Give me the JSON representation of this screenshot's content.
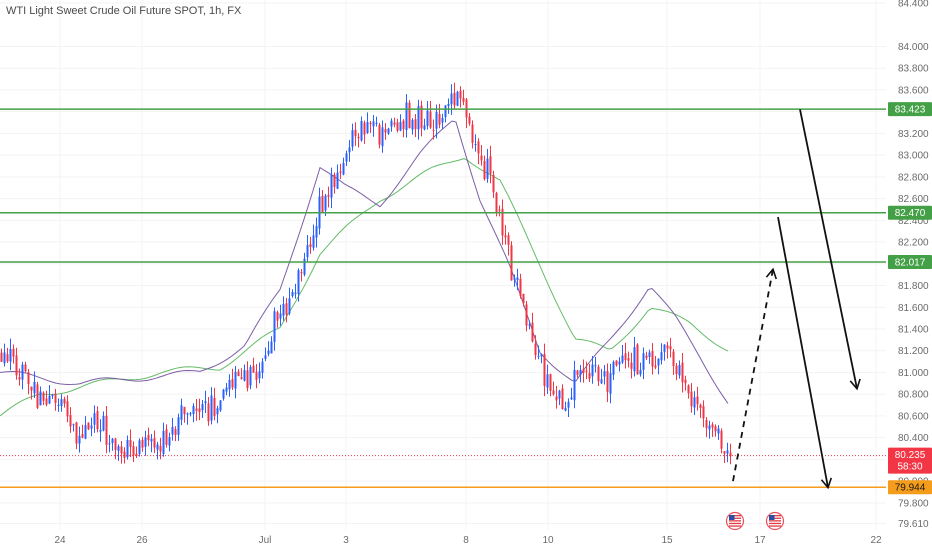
{
  "chart_data": {
    "type": "candlestick",
    "title": "WTI Light Sweet Crude Oil Future SPOT, 1h, FX",
    "y_ticks": [
      "84.400",
      "84.000",
      "83.800",
      "83.600",
      "83.400",
      "83.200",
      "83.000",
      "82.800",
      "82.600",
      "82.400",
      "82.200",
      "82.000",
      "81.800",
      "81.600",
      "81.400",
      "81.200",
      "81.000",
      "80.800",
      "80.600",
      "80.400",
      "80.200",
      "80.000",
      "79.800",
      "79.610"
    ],
    "x_ticks": [
      "24",
      "26",
      "Jul",
      "3",
      "8",
      "10",
      "15",
      "17",
      "22"
    ],
    "ylim": [
      79.61,
      84.4
    ],
    "horizontal_levels": [
      {
        "value": 83.423,
        "label": "83.423",
        "color": "#43a047"
      },
      {
        "value": 82.47,
        "label": "82.470",
        "color": "#43a047"
      },
      {
        "value": 82.017,
        "label": "82.017",
        "color": "#43a047"
      },
      {
        "value": 79.944,
        "label": "79.944",
        "color": "#f59c1a"
      }
    ],
    "last_price": {
      "value": 80.235,
      "label": "80.235",
      "countdown": "58:30",
      "color": "#f23645"
    },
    "up_color": "#2962ff",
    "down_color": "#f23645",
    "ma_fast_color": "#7b5ea7",
    "ma_slow_color": "#66bb6a",
    "event_icons": [
      "us-flag-icon",
      "us-flag-icon"
    ],
    "anchors_x": [
      0,
      60,
      142,
      265,
      346,
      466,
      548,
      667,
      730
    ],
    "anchors_close": [
      81.2,
      80.6,
      80.25,
      81.15,
      83.1,
      83.5,
      80.8,
      81.2,
      80.2
    ],
    "ma_fast_anchors_x": [
      0,
      40,
      80,
      140,
      200,
      245,
      280,
      320,
      345,
      380,
      420,
      455,
      480,
      510,
      540,
      575,
      610,
      650,
      675,
      700,
      730
    ],
    "ma_fast_anchors_y": [
      81.0,
      80.95,
      80.9,
      80.95,
      81.0,
      81.25,
      81.75,
      82.9,
      82.7,
      82.55,
      83.0,
      83.35,
      82.6,
      81.95,
      81.2,
      80.9,
      81.3,
      81.8,
      81.5,
      81.15,
      80.7
    ],
    "ma_slow_anchors_x": [
      0,
      40,
      100,
      160,
      220,
      280,
      320,
      380,
      430,
      465,
      500,
      540,
      575,
      610,
      650,
      690,
      730
    ],
    "ma_slow_anchors_y": [
      80.6,
      80.8,
      80.9,
      81.0,
      81.05,
      81.4,
      82.1,
      82.6,
      82.85,
      83.0,
      82.75,
      82.0,
      81.3,
      81.2,
      81.6,
      81.45,
      81.2
    ],
    "arrows": [
      {
        "from": [
          80.0,
          733
        ],
        "to": [
          81.95,
          773
        ],
        "style": "dashed"
      },
      {
        "from": [
          82.43,
          778
        ],
        "to": [
          79.94,
          828
        ],
        "style": "solid"
      },
      {
        "from": [
          83.42,
          800
        ],
        "to": [
          80.85,
          857
        ],
        "style": "solid"
      }
    ]
  }
}
